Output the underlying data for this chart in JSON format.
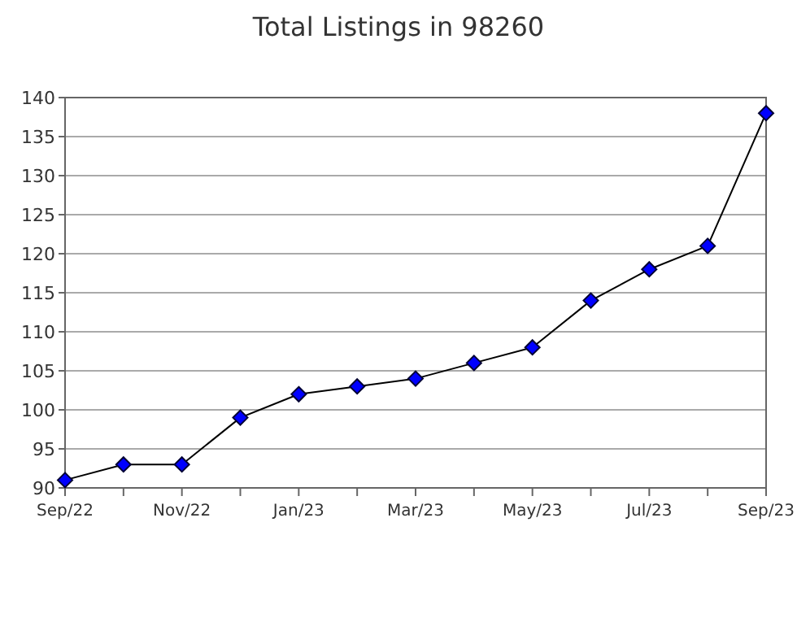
{
  "chart_data": {
    "type": "line",
    "title": "Total Listings in 98260",
    "categories": [
      "Sep/22",
      null,
      "Nov/22",
      null,
      "Jan/23",
      null,
      "Mar/23",
      null,
      "May/23",
      null,
      "Jul/23",
      null,
      "Sep/23"
    ],
    "series": [
      {
        "color": "#0000ff",
        "values": [
          91,
          93,
          93,
          99,
          102,
          103,
          104,
          106,
          108,
          114,
          118,
          121,
          138
        ]
      }
    ],
    "ylim": [
      90,
      140
    ],
    "yticks": [
      90,
      95,
      100,
      105,
      110,
      115,
      120,
      125,
      130,
      135,
      140
    ],
    "grid": "y",
    "marker": "diamond",
    "line_style": "solid"
  }
}
